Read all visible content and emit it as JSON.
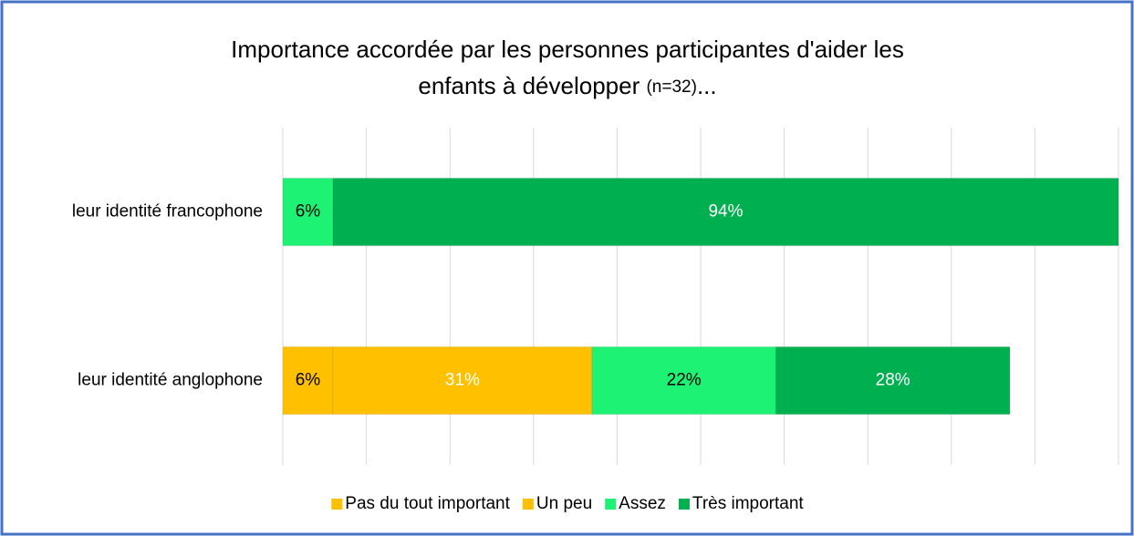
{
  "chart_data": {
    "type": "stacked_barh",
    "title_lines": [
      "Importance accordée par les personnes participantes d'aider les",
      "enfants à développer"
    ],
    "sample": "(n=32)",
    "ellipsis": "...",
    "categories": [
      "leur identité francophone",
      "leur identité anglophone"
    ],
    "series": [
      {
        "name": "Pas du tout important",
        "color": "#FFC000",
        "label_color": "#000000",
        "values": [
          0,
          6
        ],
        "value_labels": [
          null,
          "6%"
        ]
      },
      {
        "name": "Un peu",
        "color": "#FFC000",
        "label_color": "#FFFFFF",
        "values": [
          0,
          31
        ],
        "value_labels": [
          null,
          "31%"
        ]
      },
      {
        "name": "Assez",
        "color": "#1EF274",
        "label_color": "#000000",
        "values": [
          6,
          22
        ],
        "value_labels": [
          "6%",
          "22%"
        ]
      },
      {
        "name": "Très important",
        "color": "#00B050",
        "label_color": "#FFFFFF",
        "values": [
          94,
          28
        ],
        "value_labels": [
          "94%",
          "28%"
        ]
      }
    ],
    "xlim": [
      0,
      100
    ],
    "xticks": [
      0,
      10,
      20,
      30,
      40,
      50,
      60,
      70,
      80,
      90,
      100
    ],
    "grid": true,
    "legend": "bottom"
  }
}
